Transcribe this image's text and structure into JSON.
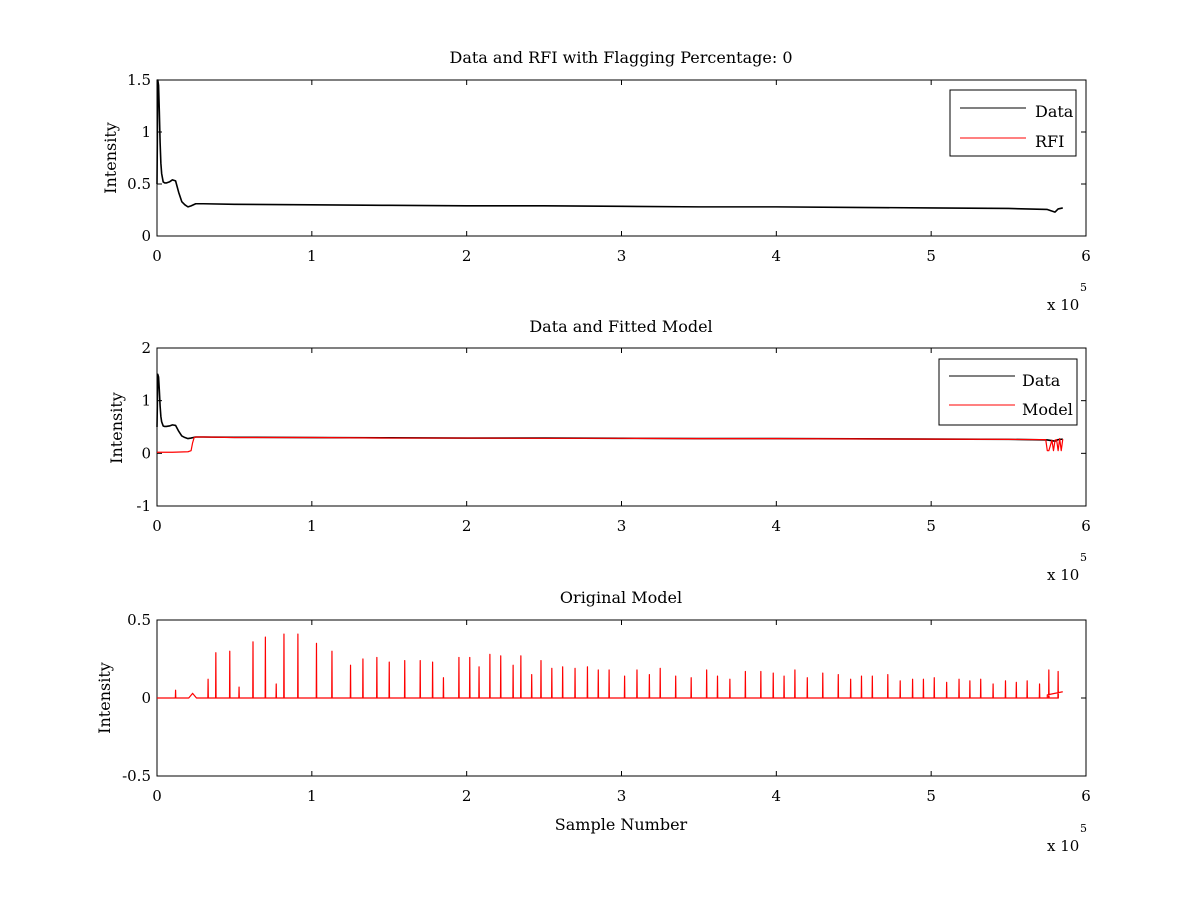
{
  "figure": {
    "background": "#ffffff"
  },
  "chart_data": [
    {
      "type": "line",
      "title": "Data and RFI with Flagging Percentage: 0",
      "xlabel": "",
      "ylabel": "Intensity",
      "xlim": [
        0,
        6
      ],
      "ylim": [
        0,
        1.5
      ],
      "x_exponent_label": "x 10",
      "x_exponent": "5",
      "xticks": [
        0,
        1,
        2,
        3,
        4,
        5,
        6
      ],
      "yticks": [
        0,
        0.5,
        1,
        1.5
      ],
      "ytick_labels": [
        "0",
        "0.5",
        "1",
        "1.5"
      ],
      "legend_position": "top-right",
      "series": [
        {
          "name": "Data",
          "color": "#000000",
          "x": [
            0,
            0.005,
            0.01,
            0.015,
            0.02,
            0.025,
            0.03,
            0.04,
            0.05,
            0.06,
            0.08,
            0.1,
            0.12,
            0.14,
            0.16,
            0.18,
            0.2,
            0.22,
            0.25,
            0.3,
            0.5,
            1.0,
            1.5,
            2.0,
            2.5,
            3.0,
            3.5,
            4.0,
            4.5,
            5.0,
            5.5,
            5.75,
            5.8,
            5.82,
            5.85
          ],
          "y": [
            0.5,
            1.5,
            1.45,
            1.2,
            0.9,
            0.7,
            0.6,
            0.52,
            0.51,
            0.51,
            0.52,
            0.54,
            0.53,
            0.42,
            0.33,
            0.3,
            0.28,
            0.29,
            0.31,
            0.31,
            0.305,
            0.3,
            0.295,
            0.29,
            0.29,
            0.285,
            0.28,
            0.28,
            0.275,
            0.27,
            0.265,
            0.255,
            0.23,
            0.26,
            0.27
          ]
        },
        {
          "name": "RFI",
          "color": "#ff0000",
          "x": [],
          "y": []
        }
      ]
    },
    {
      "type": "line",
      "title": "Data and Fitted Model",
      "xlabel": "",
      "ylabel": "Intensity",
      "xlim": [
        0,
        6
      ],
      "ylim": [
        -1,
        2
      ],
      "x_exponent_label": "x 10",
      "x_exponent": "5",
      "xticks": [
        0,
        1,
        2,
        3,
        4,
        5,
        6
      ],
      "yticks": [
        -1,
        0,
        1,
        2
      ],
      "ytick_labels": [
        "-1",
        "0",
        "1",
        "2"
      ],
      "legend_position": "top-right",
      "series": [
        {
          "name": "Data",
          "color": "#000000",
          "x": [
            0,
            0.005,
            0.01,
            0.015,
            0.02,
            0.025,
            0.03,
            0.04,
            0.05,
            0.06,
            0.08,
            0.1,
            0.12,
            0.14,
            0.16,
            0.18,
            0.2,
            0.22,
            0.25,
            0.3,
            0.5,
            1.0,
            1.5,
            2.0,
            2.5,
            3.0,
            3.5,
            4.0,
            4.5,
            5.0,
            5.5,
            5.75,
            5.8,
            5.82,
            5.85
          ],
          "y": [
            0.5,
            1.5,
            1.45,
            1.2,
            0.9,
            0.7,
            0.6,
            0.52,
            0.51,
            0.51,
            0.52,
            0.54,
            0.53,
            0.42,
            0.33,
            0.3,
            0.28,
            0.29,
            0.31,
            0.31,
            0.305,
            0.3,
            0.295,
            0.29,
            0.29,
            0.285,
            0.28,
            0.28,
            0.275,
            0.27,
            0.265,
            0.255,
            0.23,
            0.26,
            0.27
          ]
        },
        {
          "name": "Model",
          "color": "#ff0000",
          "x": [
            0,
            0.1,
            0.2,
            0.22,
            0.23,
            0.24,
            0.25,
            0.3,
            0.5,
            1.0,
            1.5,
            2.0,
            2.5,
            3.0,
            3.5,
            4.0,
            4.5,
            5.0,
            5.5,
            5.74,
            5.75,
            5.76,
            5.78,
            5.79,
            5.8,
            5.81,
            5.82,
            5.83,
            5.84,
            5.85
          ],
          "y": [
            0.02,
            0.02,
            0.03,
            0.05,
            0.2,
            0.3,
            0.31,
            0.31,
            0.3,
            0.3,
            0.29,
            0.29,
            0.285,
            0.285,
            0.28,
            0.28,
            0.275,
            0.27,
            0.265,
            0.26,
            0.05,
            0.05,
            0.25,
            0.05,
            0.25,
            0.26,
            0.05,
            0.28,
            0.05,
            0.27
          ]
        }
      ]
    },
    {
      "type": "line",
      "title": "Original Model",
      "xlabel": "Sample Number",
      "ylabel": "Intensity",
      "xlim": [
        0,
        6
      ],
      "ylim": [
        -0.5,
        0.5
      ],
      "x_exponent_label": "x 10",
      "x_exponent": "5",
      "xticks": [
        0,
        1,
        2,
        3,
        4,
        5,
        6
      ],
      "yticks": [
        -0.5,
        0,
        0.5
      ],
      "ytick_labels": [
        "-0.5",
        "0",
        "0.5"
      ],
      "legend_position": "none",
      "series": [
        {
          "name": "",
          "color": "#ff0000",
          "baseline": 0,
          "hump": {
            "x": 0.23,
            "y": 0.03
          },
          "end_segment": {
            "x": [
              5.75,
              5.85
            ],
            "y": [
              0.02,
              0.04
            ]
          },
          "spikes": {
            "x": [
              0.12,
              0.33,
              0.38,
              0.47,
              0.53,
              0.62,
              0.7,
              0.77,
              0.82,
              0.91,
              1.03,
              1.13,
              1.25,
              1.33,
              1.42,
              1.5,
              1.6,
              1.7,
              1.78,
              1.85,
              1.95,
              2.02,
              2.08,
              2.15,
              2.22,
              2.3,
              2.35,
              2.42,
              2.48,
              2.55,
              2.62,
              2.7,
              2.78,
              2.85,
              2.92,
              3.02,
              3.1,
              3.18,
              3.25,
              3.35,
              3.45,
              3.55,
              3.62,
              3.7,
              3.8,
              3.9,
              3.98,
              4.05,
              4.12,
              4.2,
              4.3,
              4.4,
              4.48,
              4.55,
              4.62,
              4.72,
              4.8,
              4.88,
              4.95,
              5.02,
              5.1,
              5.18,
              5.25,
              5.32,
              5.4,
              5.48,
              5.55,
              5.62,
              5.7,
              5.76,
              5.82
            ],
            "y": [
              0.05,
              0.12,
              0.29,
              0.3,
              0.07,
              0.36,
              0.39,
              0.09,
              0.41,
              0.41,
              0.35,
              0.3,
              0.21,
              0.25,
              0.26,
              0.23,
              0.24,
              0.24,
              0.23,
              0.13,
              0.26,
              0.26,
              0.2,
              0.28,
              0.27,
              0.21,
              0.27,
              0.15,
              0.24,
              0.19,
              0.2,
              0.19,
              0.2,
              0.18,
              0.18,
              0.14,
              0.18,
              0.15,
              0.19,
              0.14,
              0.13,
              0.18,
              0.14,
              0.12,
              0.17,
              0.17,
              0.16,
              0.14,
              0.18,
              0.13,
              0.16,
              0.15,
              0.12,
              0.14,
              0.14,
              0.15,
              0.11,
              0.12,
              0.12,
              0.13,
              0.1,
              0.12,
              0.11,
              0.12,
              0.09,
              0.11,
              0.1,
              0.11,
              0.09,
              0.18,
              0.17
            ]
          }
        }
      ]
    }
  ]
}
